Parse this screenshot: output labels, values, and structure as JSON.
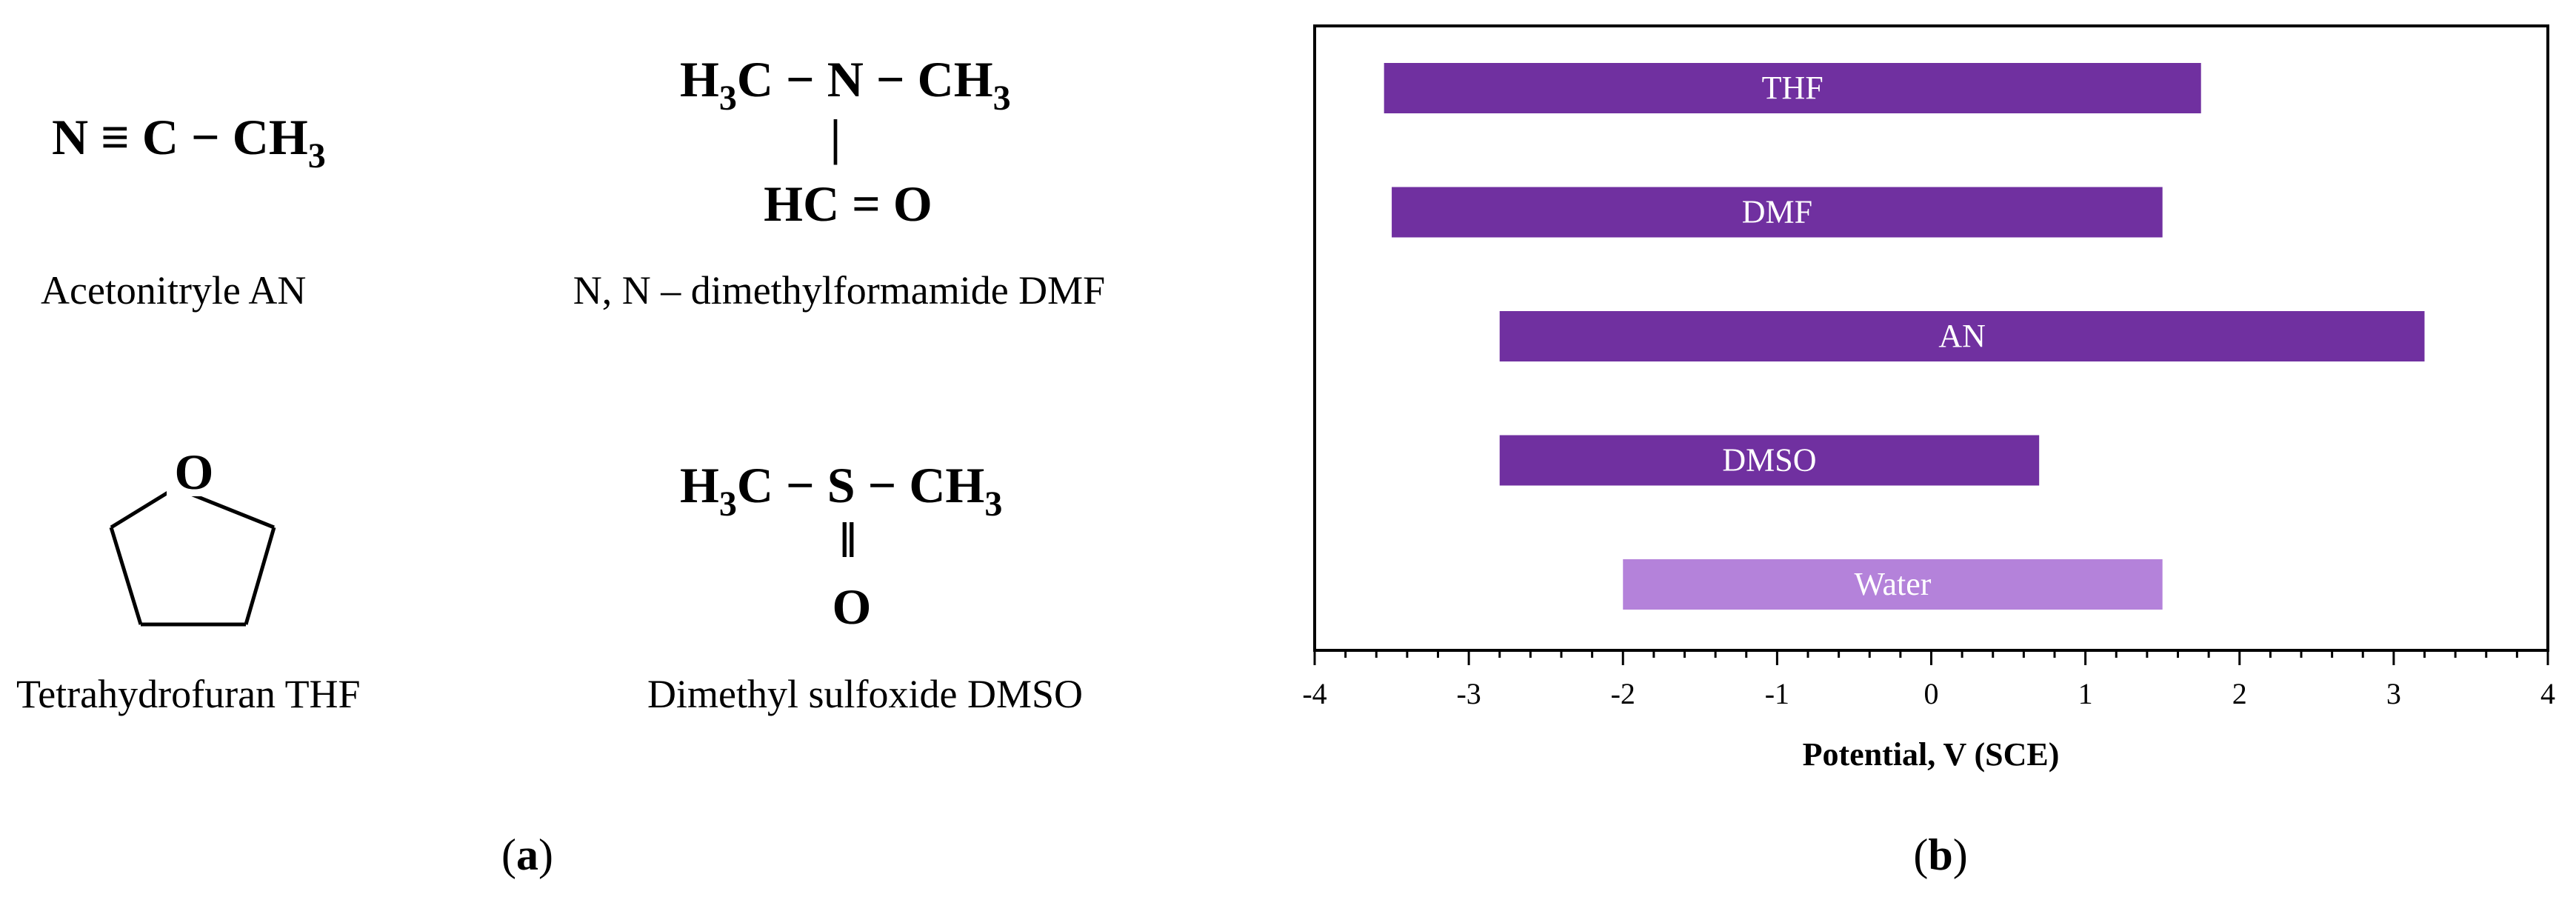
{
  "panel_a": {
    "label_open": "(",
    "label_letter": "a",
    "label_close": ")",
    "an": {
      "formula": {
        "main": "N ≡ C − CH",
        "sub": "3"
      },
      "caption": "Acetonitryle AN"
    },
    "dmf": {
      "line1": {
        "h": "H",
        "s1": "3",
        "mid": "C − N − CH",
        "s2": "3"
      },
      "bond": "|",
      "line2": "HC = O",
      "caption": "N, N – dimethylformamide DMF"
    },
    "thf": {
      "ring_atom": "O",
      "caption": "Tetrahydrofuran THF"
    },
    "dmso": {
      "line1": {
        "h": "H",
        "s1": "3",
        "mid": "C − S − CH",
        "s2": "3"
      },
      "bond": "‖",
      "line2": "O",
      "caption": "Dimethyl sulfoxide DMSO"
    }
  },
  "panel_b": {
    "label_open": "(",
    "label_letter": "b",
    "label_close": ")"
  },
  "chart_data": {
    "type": "bar",
    "orientation": "horizontal",
    "xlabel": "Potential, V (SCE)",
    "ylabel": "",
    "xlim": [
      -4,
      4
    ],
    "xticks": [
      -4,
      -3,
      -2,
      -1,
      0,
      1,
      2,
      3,
      4
    ],
    "x_minor_step": 0.2,
    "grid": false,
    "legend": "none",
    "series": [
      {
        "name": "THF",
        "start": -3.55,
        "end": 1.75,
        "color": "#7030a0"
      },
      {
        "name": "DMF",
        "start": -3.5,
        "end": 1.5,
        "color": "#7030a0"
      },
      {
        "name": "AN",
        "start": -2.8,
        "end": 3.2,
        "color": "#7030a0"
      },
      {
        "name": "DMSO",
        "start": -2.8,
        "end": 0.7,
        "color": "#7030a0"
      },
      {
        "name": "Water",
        "start": -2.0,
        "end": 1.5,
        "color": "#b482da"
      }
    ]
  }
}
